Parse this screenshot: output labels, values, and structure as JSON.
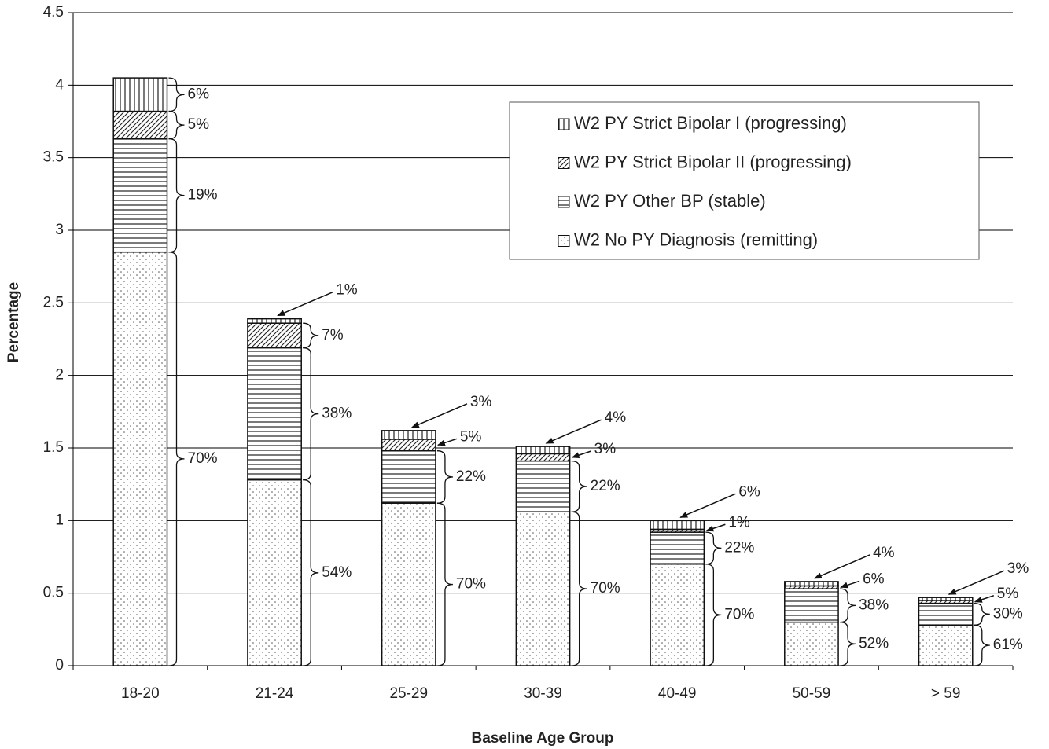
{
  "chart_data": {
    "type": "stacked_bar",
    "categories": [
      "18-20",
      "21-24",
      "25-29",
      "30-39",
      "40-49",
      "50-59",
      "> 59"
    ],
    "x_label": "Baseline Age Group",
    "y_label": "Percentage",
    "ylim": [
      0,
      4.5
    ],
    "yticks": [
      0,
      0.5,
      1,
      1.5,
      2,
      2.5,
      3,
      3.5,
      4,
      4.5
    ],
    "grid": true,
    "legend_position": "upper right",
    "series": [
      {
        "name": "W2 No PY Diagnosis (remitting)",
        "pattern": "dots",
        "values": [
          2.85,
          1.28,
          1.12,
          1.06,
          0.7,
          0.3,
          0.28
        ],
        "share_labels": [
          "70%",
          "54%",
          "70%",
          "70%",
          "70%",
          "52%",
          "61%"
        ]
      },
      {
        "name": "W2 PY Other BP (stable)",
        "pattern": "hlines",
        "values": [
          0.78,
          0.91,
          0.36,
          0.35,
          0.22,
          0.23,
          0.15
        ],
        "share_labels": [
          "19%",
          "38%",
          "22%",
          "22%",
          "22%",
          "38%",
          "30%"
        ]
      },
      {
        "name": "W2 PY Strict Bipolar II (progressing)",
        "pattern": "diag",
        "values": [
          0.19,
          0.17,
          0.08,
          0.05,
          0.02,
          0.02,
          0.02
        ],
        "share_labels": [
          "5%",
          "7%",
          "5%",
          "3%",
          "1%",
          "6%",
          "5%"
        ]
      },
      {
        "name": "W2 PY Strict Bipolar I (progressing)",
        "pattern": "vlines",
        "values": [
          0.23,
          0.03,
          0.06,
          0.05,
          0.06,
          0.03,
          0.02
        ],
        "share_labels": [
          "6%",
          "1%",
          "3%",
          "4%",
          "6%",
          "4%",
          "3%"
        ]
      }
    ]
  }
}
